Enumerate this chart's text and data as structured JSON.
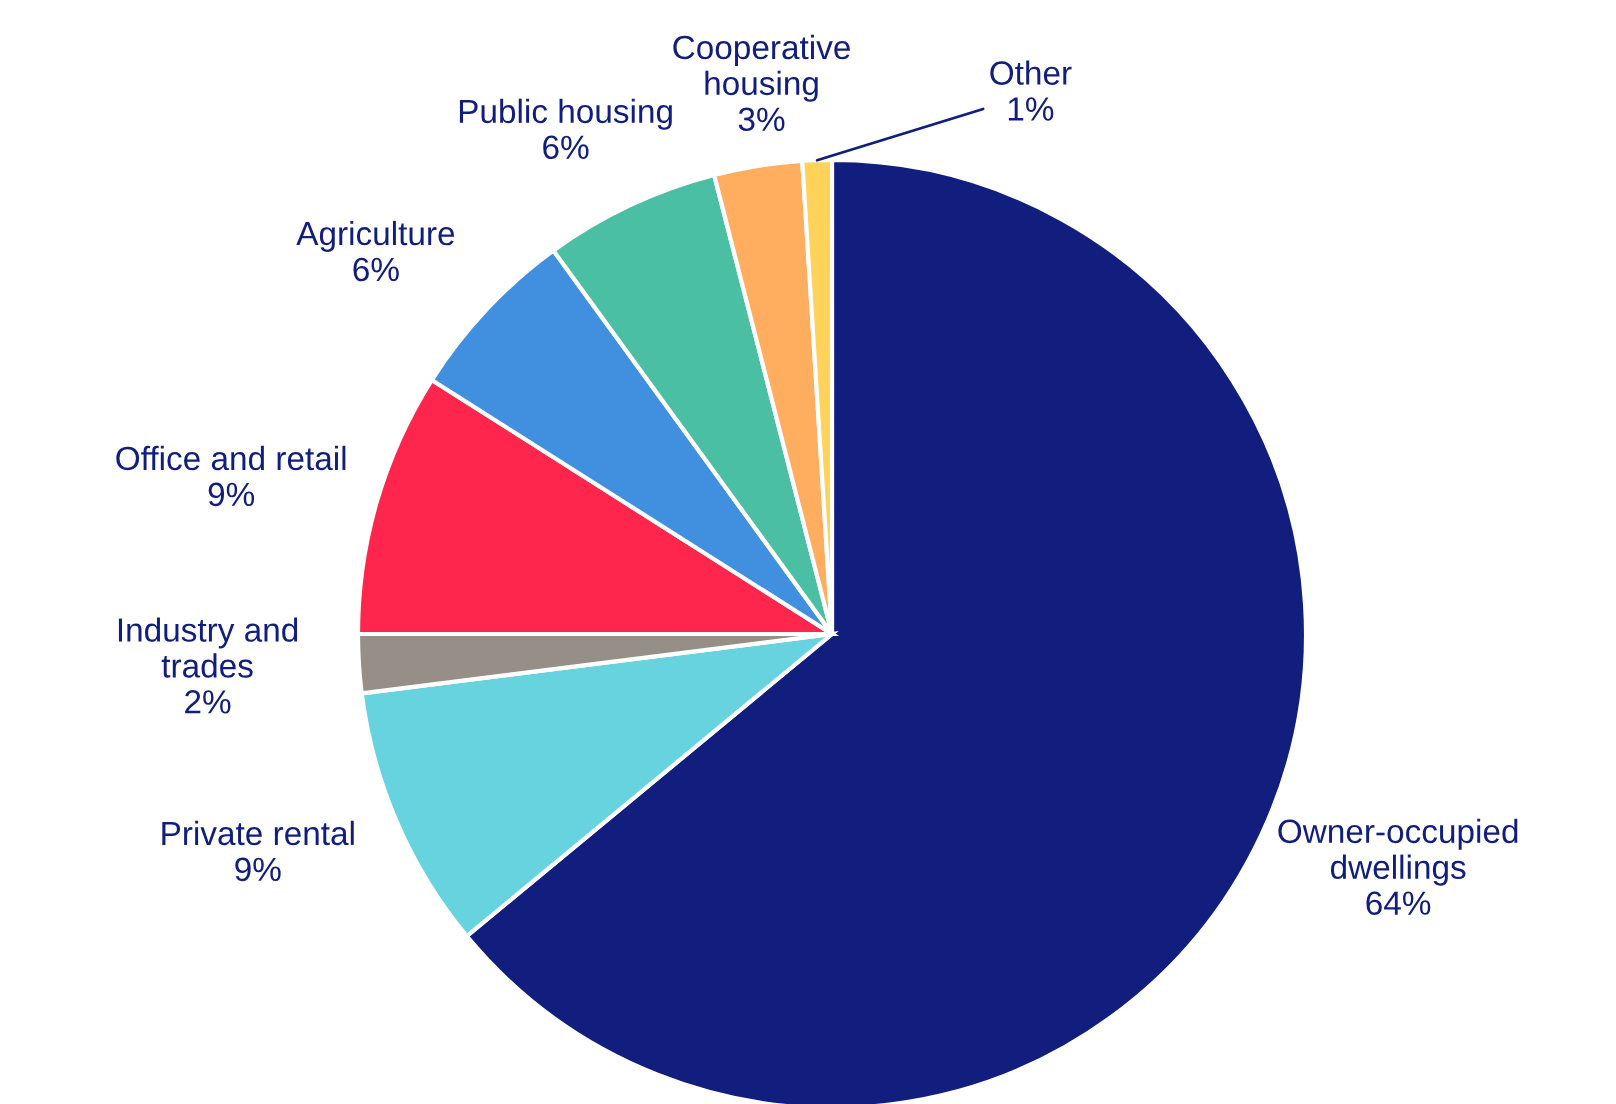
{
  "chart_data": {
    "type": "pie",
    "categories": [
      "Owner-occupied\ndwellings",
      "Private rental",
      "Industry and\ntrades",
      "Office and retail",
      "Agriculture",
      "Public housing",
      "Cooperative\nhousing",
      "Other"
    ],
    "values": [
      64,
      9,
      2,
      9,
      6,
      6,
      3,
      1
    ],
    "colors": [
      "#111e7d",
      "#66d3df",
      "#968f87",
      "#ff264d",
      "#4190df",
      "#4abfa3",
      "#ffad5f",
      "#ffd25a"
    ],
    "value_labels": [
      "64%",
      "9%",
      "2%",
      "9%",
      "6%",
      "6%",
      "3%",
      "1%"
    ],
    "legend": false
  }
}
